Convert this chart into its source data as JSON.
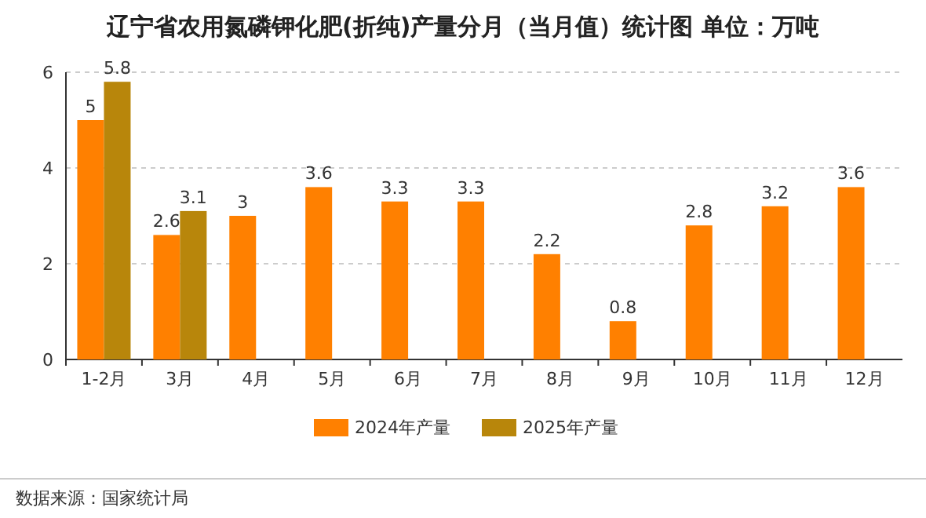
{
  "chart_data": {
    "type": "bar",
    "title": "辽宁省农用氮磷钾化肥(折纯)产量分月（当月值）统计图 单位：万吨",
    "categories": [
      "1-2月",
      "3月",
      "4月",
      "5月",
      "6月",
      "7月",
      "8月",
      "9月",
      "10月",
      "11月",
      "12月"
    ],
    "series": [
      {
        "name": "2024年产量",
        "color": "#ff8000",
        "values": [
          5,
          2.6,
          3,
          3.6,
          3.3,
          3.3,
          2.2,
          0.8,
          2.8,
          3.2,
          3.6
        ]
      },
      {
        "name": "2025年产量",
        "color": "#b8860b",
        "values": [
          5.8,
          3.1,
          null,
          null,
          null,
          null,
          null,
          null,
          null,
          null,
          null
        ]
      }
    ],
    "ylim": [
      0,
      6
    ],
    "yticks": [
      0,
      2,
      4,
      6
    ],
    "grid": "y",
    "legend": "bottom",
    "data_labels": true,
    "annotations": [
      "数据来源：国家统计局"
    ]
  }
}
